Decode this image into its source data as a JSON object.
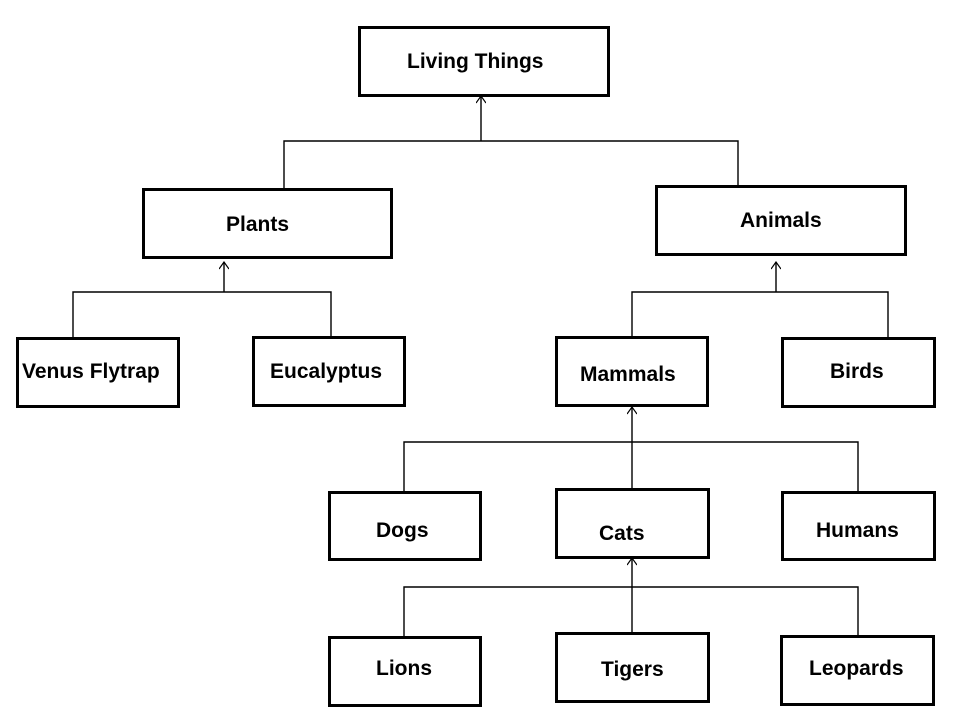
{
  "nodes": {
    "living_things": "Living Things",
    "plants": "Plants",
    "animals": "Animals",
    "venus_flytrap": "Venus Flytrap",
    "eucalyptus": "Eucalyptus",
    "mammals": "Mammals",
    "birds": "Birds",
    "dogs": "Dogs",
    "cats": "Cats",
    "humans": "Humans",
    "lions": "Lions",
    "tigers": "Tigers",
    "leopards": "Leopards"
  },
  "colors": {
    "stroke": "#000000",
    "background": "#ffffff"
  }
}
